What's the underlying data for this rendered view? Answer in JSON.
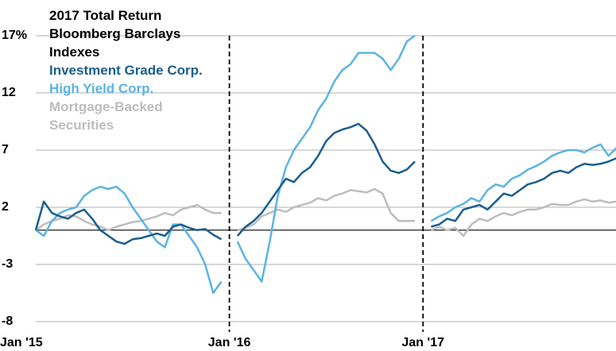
{
  "chart_data": {
    "type": "line",
    "title": "2017 Total Return Bloomberg Barclays Indexes",
    "categories": [
      "Jan '15",
      null,
      null,
      null,
      null,
      null,
      null,
      null,
      null,
      null,
      null,
      null,
      null,
      null,
      null,
      null,
      null,
      null,
      null,
      null,
      null,
      null,
      null,
      null,
      "Jan '16",
      null,
      null,
      null,
      null,
      null,
      null,
      null,
      null,
      null,
      null,
      null,
      null,
      null,
      null,
      null,
      null,
      null,
      null,
      null,
      null,
      null,
      null,
      null,
      "Jan '17",
      null,
      null,
      null,
      null,
      null,
      null,
      null,
      null,
      null,
      null,
      null,
      null,
      null,
      null,
      null,
      null,
      null,
      null,
      null,
      null,
      null,
      null,
      null,
      null
    ],
    "series": [
      {
        "name": "Investment Grade Corp.",
        "color": "#1a5e8e",
        "values": [
          0,
          2.5,
          1.5,
          1.2,
          1.0,
          1.5,
          1.8,
          1.0,
          0,
          -0.5,
          -1.0,
          -1.2,
          -0.8,
          -0.7,
          -0.5,
          -0.3,
          -0.5,
          0.3,
          0.5,
          0.2,
          0,
          0.1,
          -0.4,
          -0.8,
          null,
          -0.5,
          0.3,
          0.8,
          1.5,
          2.5,
          3.5,
          4.5,
          4.2,
          5,
          5.5,
          6.5,
          7.8,
          8.5,
          8.8,
          9,
          9.3,
          8.7,
          7.5,
          6,
          5.2,
          5,
          5.3,
          6,
          null,
          0.3,
          0.5,
          1,
          0.8,
          1.8,
          2,
          2.2,
          1.8,
          2.5,
          3.2,
          3,
          3.5,
          4,
          4.2,
          4.5,
          5,
          5.2,
          5,
          5.5,
          5.8,
          5.7,
          5.8,
          6,
          6.3
        ]
      },
      {
        "name": "High Yield Corp.",
        "color": "#5bb4e3",
        "values": [
          0,
          -0.5,
          0.8,
          1.5,
          1.8,
          2.0,
          3.0,
          3.5,
          3.8,
          3.6,
          3.8,
          3.2,
          2.0,
          1.0,
          0,
          -1.0,
          -1.5,
          0.5,
          0.5,
          -0.5,
          -1.5,
          -3,
          -5.5,
          -4.5,
          null,
          -1,
          -2.5,
          -3.5,
          -4.5,
          -1,
          3,
          5.5,
          7,
          8,
          9,
          10.5,
          11.5,
          13,
          14,
          14.5,
          15.5,
          15.5,
          15.5,
          15,
          14,
          15,
          16.5,
          17,
          null,
          0.8,
          1.2,
          1.5,
          2,
          2.3,
          2.8,
          2.5,
          3.5,
          4,
          3.8,
          4.5,
          4.8,
          5.3,
          5.6,
          6,
          6.5,
          6.8,
          7,
          7,
          6.8,
          7.2,
          7.5,
          6.5,
          7.2
        ]
      },
      {
        "name": "Mortgage-Backed Securities",
        "color": "#bdbdbd",
        "values": [
          0,
          0.5,
          0.8,
          1.0,
          1.3,
          1.2,
          0.8,
          0.5,
          0.3,
          0,
          0.3,
          0.5,
          0.7,
          0.8,
          1.0,
          1.2,
          1.5,
          1.3,
          1.8,
          2.0,
          2.2,
          1.8,
          1.5,
          1.5,
          null,
          0,
          0.2,
          0.5,
          1.2,
          1.5,
          1.8,
          1.6,
          2.0,
          2.2,
          2.4,
          2.8,
          2.6,
          3.0,
          3.2,
          3.5,
          3.4,
          3.3,
          3.6,
          3.2,
          1.5,
          0.8,
          0.8,
          0.8,
          null,
          0,
          0.3,
          0,
          0.2,
          -0.5,
          0.5,
          1,
          0.8,
          1.2,
          1.5,
          1.3,
          1.6,
          1.8,
          1.8,
          2,
          2.3,
          2.2,
          2.2,
          2.5,
          2.7,
          2.5,
          2.6,
          2.4,
          2.5
        ]
      }
    ],
    "ylim": [
      -8,
      17
    ],
    "yticks": [
      -8,
      -3,
      2,
      7,
      12,
      {
        "value": 17,
        "label": "17%"
      }
    ],
    "grid": true
  }
}
